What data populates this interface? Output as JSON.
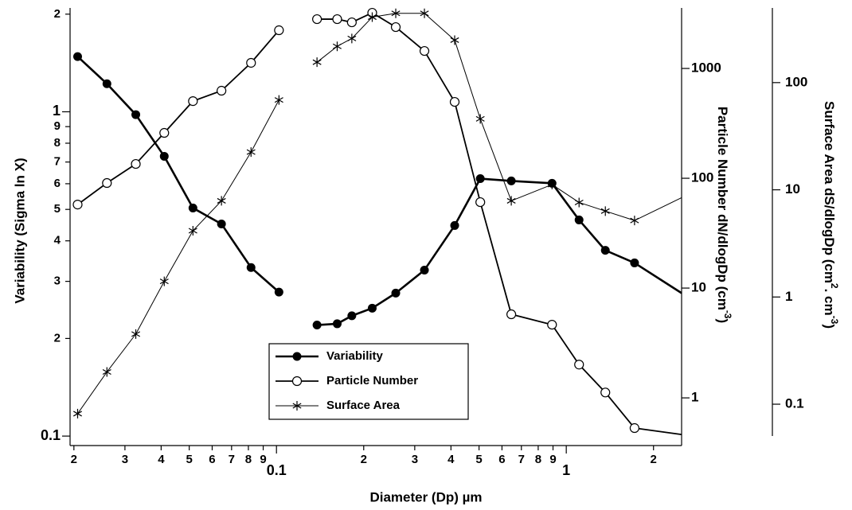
{
  "chart_data": {
    "type": "line",
    "x_label": "Diameter (Dp) µm",
    "y_label": "Variability (Sigma ln X)",
    "y2_label": [
      "Particle Number  dN/dlogDp (cm",
      "-3",
      ")"
    ],
    "y3_label": [
      "Surface Area   dS/dlogDp (cm",
      "2",
      ". cm",
      "-3",
      ")"
    ],
    "x_log": true,
    "y_log": true,
    "y2_log": true,
    "y3_log": true,
    "x": [
      0.0206,
      0.026,
      0.0327,
      0.041,
      0.0515,
      0.0646,
      0.0817,
      0.102,
      null,
      0.138,
      0.162,
      0.182,
      0.214,
      0.258,
      0.324,
      0.412,
      0.505,
      0.646,
      0.893,
      1.107,
      1.364,
      1.72,
      2.5
    ],
    "series": [
      {
        "name": "Variability",
        "color": "#000000",
        "axis": "y",
        "marker": "circle-filled",
        "values": [
          1.48,
          1.22,
          0.98,
          0.729,
          0.505,
          0.451,
          0.331,
          0.278,
          null,
          0.22,
          0.222,
          0.235,
          0.248,
          0.276,
          0.325,
          0.446,
          0.622,
          0.612,
          0.602,
          0.464,
          0.374,
          0.342,
          0.276
        ]
      },
      {
        "name": "Particle Number",
        "color": "#000000",
        "axis": "y2",
        "marker": "circle-open",
        "values": [
          57.6,
          90.5,
          135,
          259,
          504,
          627,
          1125,
          2228,
          null,
          2813,
          2813,
          2630,
          3213,
          2381,
          1443,
          496,
          60.6,
          5.77,
          4.64,
          2.01,
          1.12,
          0.531,
          0.464
        ]
      },
      {
        "name": "Surface Area",
        "color": "#000000",
        "axis": "y3",
        "marker": "asterisk",
        "values": [
          0.0816,
          0.2,
          0.451,
          1.4,
          4.15,
          7.89,
          22.5,
          68.9,
          null,
          155,
          218,
          258,
          408,
          443,
          443,
          249,
          45.9,
          7.89,
          11.2,
          7.62,
          6.33,
          5.17,
          8.44
        ]
      }
    ],
    "xlim": [
      0.0194,
      2.5
    ],
    "xticks": [
      {
        "value": 0.02,
        "label": "2"
      },
      {
        "value": 0.03,
        "label": "3"
      },
      {
        "value": 0.04,
        "label": "4"
      },
      {
        "value": 0.05,
        "label": "5"
      },
      {
        "value": 0.06,
        "label": "6"
      },
      {
        "value": 0.07,
        "label": "7"
      },
      {
        "value": 0.08,
        "label": "8"
      },
      {
        "value": 0.09,
        "label": "9"
      },
      0.1,
      {
        "value": 0.2,
        "label": "2"
      },
      {
        "value": 0.3,
        "label": "3"
      },
      {
        "value": 0.4,
        "label": "4"
      },
      {
        "value": 0.5,
        "label": "5"
      },
      {
        "value": 0.6,
        "label": "6"
      },
      {
        "value": 0.7,
        "label": "7"
      },
      {
        "value": 0.8,
        "label": "8"
      },
      {
        "value": 0.9,
        "label": "9"
      },
      1,
      2
    ],
    "ylim": [
      0.0935,
      2.09
    ],
    "yticks": [
      0.1,
      {
        "value": 0.2,
        "label": "2"
      },
      {
        "value": 0.3,
        "label": "3"
      },
      {
        "value": 0.4,
        "label": "4"
      },
      {
        "value": 0.5,
        "label": "5"
      },
      {
        "value": 0.6,
        "label": "6"
      },
      {
        "value": 0.7,
        "label": "7"
      },
      {
        "value": 0.8,
        "label": "8"
      },
      {
        "value": 0.9,
        "label": "9"
      },
      1,
      2
    ],
    "y2lim": [
      0.368,
      3556
    ],
    "y2ticks": [
      1,
      10,
      100,
      1000
    ],
    "y3lim": [
      0.0505,
      497
    ],
    "y3ticks": [
      0.1,
      1,
      10,
      100
    ],
    "legend": "lower center"
  }
}
